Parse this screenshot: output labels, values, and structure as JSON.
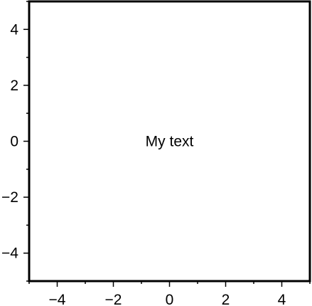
{
  "chart_data": {
    "type": "scatter",
    "title": "",
    "xlabel": "",
    "ylabel": "",
    "xlim": [
      -5,
      5
    ],
    "ylim": [
      -5,
      5
    ],
    "grid": false,
    "x_ticks": [
      -4,
      -2,
      0,
      2,
      4
    ],
    "y_ticks": [
      -4,
      -2,
      0,
      2,
      4
    ],
    "x_tick_labels": [
      "−4",
      "−2",
      "0",
      "2",
      "4"
    ],
    "y_tick_labels": [
      "−4",
      "−2",
      "0",
      "2",
      "4"
    ],
    "series": [],
    "annotations": [
      {
        "text": "My text",
        "x": 0,
        "y": 0
      }
    ]
  },
  "colors": {
    "axis": "#000000",
    "background": "#ffffff",
    "text": "#000000"
  }
}
